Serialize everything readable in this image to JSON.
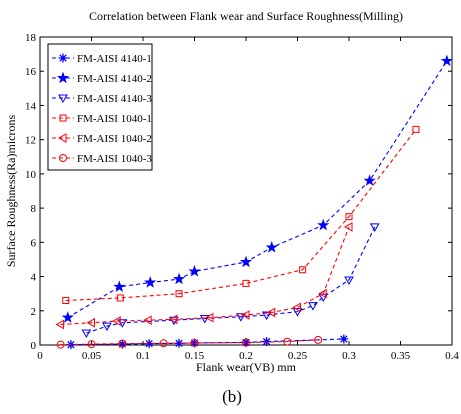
{
  "chart_data": {
    "type": "line",
    "title": "Correlation between Flank wear and Surface Roughness(Milling)",
    "xlabel": "Flank wear(VB) mm",
    "ylabel": "Surface Roughness(Ra)microns",
    "caption": "(b)",
    "xlim": [
      0,
      0.4
    ],
    "ylim": [
      0,
      18
    ],
    "xticks": [
      "0",
      "0.05",
      "0.1",
      "0.15",
      "0.2",
      "0.25",
      "0.3",
      "0.35",
      "0.4"
    ],
    "yticks": [
      "0",
      "2",
      "4",
      "6",
      "8",
      "10",
      "12",
      "14",
      "16",
      "18"
    ],
    "grid": false,
    "legend_position": "top-left",
    "series": [
      {
        "name": "FM-AISI 4140-1",
        "color": "#0000ff",
        "marker": "star-thin",
        "x": [
          0.03,
          0.08,
          0.106,
          0.135,
          0.15,
          0.2,
          0.22,
          0.295
        ],
        "y": [
          0.02,
          0.05,
          0.08,
          0.1,
          0.12,
          0.15,
          0.2,
          0.35
        ]
      },
      {
        "name": "FM-AISI 4140-2",
        "color": "#0000ff",
        "marker": "star",
        "x": [
          0.027,
          0.077,
          0.107,
          0.135,
          0.15,
          0.2,
          0.225,
          0.275,
          0.32,
          0.395
        ],
        "y": [
          1.6,
          3.4,
          3.65,
          3.85,
          4.3,
          4.85,
          5.7,
          7.0,
          9.6,
          16.6
        ]
      },
      {
        "name": "FM-AISI 4140-3",
        "color": "#0000ff",
        "marker": "triangle-down",
        "x": [
          0.045,
          0.065,
          0.08,
          0.13,
          0.16,
          0.195,
          0.22,
          0.25,
          0.265,
          0.275,
          0.3,
          0.325
        ],
        "y": [
          0.7,
          1.1,
          1.3,
          1.45,
          1.55,
          1.65,
          1.75,
          1.95,
          2.3,
          2.8,
          3.8,
          6.9
        ]
      },
      {
        "name": "FM-AISI 1040-1",
        "color": "#ff0000",
        "marker": "square",
        "x": [
          0.025,
          0.078,
          0.135,
          0.2,
          0.255,
          0.3,
          0.365
        ],
        "y": [
          2.6,
          2.75,
          3.0,
          3.6,
          4.4,
          7.5,
          12.6
        ]
      },
      {
        "name": "FM-AISI 1040-2",
        "color": "#ff0000",
        "marker": "triangle-left",
        "x": [
          0.02,
          0.05,
          0.075,
          0.105,
          0.13,
          0.165,
          0.2,
          0.225,
          0.25,
          0.275,
          0.3
        ],
        "y": [
          1.2,
          1.3,
          1.4,
          1.45,
          1.5,
          1.6,
          1.75,
          1.9,
          2.2,
          3.0,
          6.9
        ]
      },
      {
        "name": "FM-AISI 1040-3",
        "color": "#ff0000",
        "marker": "circle",
        "x": [
          0.02,
          0.05,
          0.08,
          0.12,
          0.15,
          0.2,
          0.24,
          0.27
        ],
        "y": [
          0.02,
          0.05,
          0.08,
          0.1,
          0.12,
          0.14,
          0.2,
          0.3
        ]
      }
    ]
  }
}
